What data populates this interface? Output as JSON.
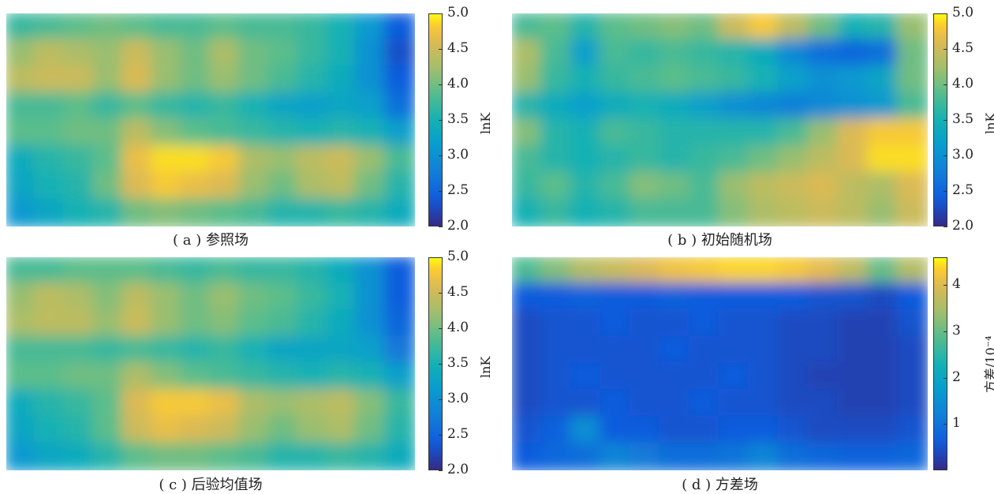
{
  "panels": [
    {
      "id": "a",
      "caption": "( a ) 参照场",
      "colorbar": {
        "ticks": [
          "5.0",
          "4.5",
          "4.0",
          "3.5",
          "3.0",
          "2.5",
          "2.0"
        ],
        "label": "lnK"
      }
    },
    {
      "id": "b",
      "caption": "( b ) 初始随机场",
      "colorbar": {
        "ticks": [
          "5.0",
          "4.5",
          "4.0",
          "3.5",
          "3.0",
          "2.5",
          "2.0"
        ],
        "label": "lnK"
      }
    },
    {
      "id": "c",
      "caption": "( c ) 后验均值场",
      "colorbar": {
        "ticks": [
          "5.0",
          "4.5",
          "4.0",
          "3.5",
          "3.0",
          "2.5",
          "2.0"
        ],
        "label": "lnK"
      }
    },
    {
      "id": "d",
      "caption": "( d ) 方差场",
      "colorbar": {
        "ticks": [
          "4",
          "3",
          "2",
          "1"
        ],
        "label": "方差/10⁻⁴"
      }
    }
  ],
  "chart_data": [
    {
      "type": "heatmap",
      "title": "( a ) 参照场",
      "colormap": "parula",
      "vmin": 2.0,
      "vmax": 5.0,
      "colorbar_label": "lnK",
      "rows": [
        [
          3.7,
          3.8,
          3.9,
          4.0,
          3.9,
          3.8,
          3.8,
          3.9,
          3.8,
          3.8,
          3.7,
          3.5,
          3.1,
          2.4
        ],
        [
          4.2,
          4.4,
          4.3,
          4.2,
          4.5,
          4.2,
          4.0,
          4.3,
          4.0,
          3.9,
          3.7,
          3.5,
          3.0,
          2.3
        ],
        [
          4.4,
          4.5,
          4.5,
          4.2,
          4.6,
          4.2,
          4.0,
          4.2,
          4.0,
          3.8,
          3.6,
          3.4,
          3.0,
          2.4
        ],
        [
          3.8,
          3.8,
          3.9,
          3.7,
          3.9,
          3.7,
          3.6,
          3.7,
          3.5,
          3.3,
          3.2,
          3.3,
          3.2,
          2.6
        ],
        [
          3.9,
          3.9,
          4.0,
          4.0,
          4.4,
          4.1,
          3.9,
          3.8,
          3.7,
          3.6,
          3.5,
          3.6,
          3.5,
          3.2
        ],
        [
          3.4,
          3.6,
          3.7,
          3.9,
          4.7,
          4.9,
          4.9,
          4.8,
          4.3,
          4.2,
          4.4,
          4.5,
          4.2,
          3.8
        ],
        [
          3.3,
          3.5,
          3.6,
          4.0,
          4.6,
          4.8,
          4.7,
          4.6,
          4.2,
          4.0,
          4.3,
          4.4,
          4.0,
          3.6
        ],
        [
          3.1,
          3.3,
          3.5,
          3.6,
          4.0,
          4.1,
          4.0,
          3.9,
          3.8,
          3.6,
          3.6,
          3.7,
          3.6,
          3.4
        ]
      ]
    },
    {
      "type": "heatmap",
      "title": "( b ) 初始随机场",
      "colormap": "parula",
      "vmin": 2.0,
      "vmax": 5.0,
      "colorbar_label": "lnK",
      "rows": [
        [
          3.8,
          3.9,
          3.6,
          3.9,
          4.0,
          4.1,
          4.0,
          4.5,
          4.8,
          4.4,
          4.0,
          3.5,
          3.6,
          4.2
        ],
        [
          4.3,
          3.8,
          3.2,
          3.8,
          3.7,
          3.8,
          3.7,
          3.6,
          3.4,
          2.9,
          2.6,
          2.5,
          2.6,
          4.0
        ],
        [
          4.2,
          3.7,
          3.5,
          3.7,
          3.8,
          3.9,
          3.8,
          3.7,
          3.5,
          3.2,
          3.0,
          3.1,
          3.3,
          4.0
        ],
        [
          3.6,
          3.4,
          3.2,
          3.4,
          3.5,
          3.4,
          3.2,
          3.0,
          2.9,
          2.8,
          2.9,
          3.0,
          3.1,
          3.8
        ],
        [
          4.1,
          3.6,
          3.5,
          3.8,
          3.7,
          3.6,
          3.6,
          3.6,
          3.6,
          3.8,
          4.2,
          4.6,
          4.8,
          4.8
        ],
        [
          3.8,
          3.6,
          3.5,
          3.6,
          3.7,
          3.6,
          3.7,
          3.8,
          4.0,
          4.2,
          4.4,
          4.6,
          4.9,
          4.9
        ],
        [
          3.7,
          3.9,
          3.6,
          3.8,
          4.1,
          4.0,
          3.8,
          4.2,
          4.4,
          4.5,
          4.6,
          4.4,
          4.3,
          4.6
        ],
        [
          3.5,
          3.7,
          3.5,
          3.6,
          3.8,
          3.8,
          3.8,
          4.1,
          4.3,
          4.4,
          4.5,
          4.4,
          4.2,
          4.5
        ]
      ]
    },
    {
      "type": "heatmap",
      "title": "( c ) 后验均值场",
      "colormap": "parula",
      "vmin": 2.0,
      "vmax": 5.0,
      "colorbar_label": "lnK",
      "rows": [
        [
          3.8,
          3.8,
          3.9,
          3.9,
          3.9,
          3.8,
          3.7,
          3.8,
          3.7,
          3.7,
          3.6,
          3.4,
          3.0,
          2.4
        ],
        [
          4.2,
          4.4,
          4.3,
          4.1,
          4.4,
          4.2,
          4.0,
          4.2,
          4.0,
          3.9,
          3.7,
          3.5,
          3.0,
          2.4
        ],
        [
          4.3,
          4.4,
          4.4,
          4.2,
          4.5,
          4.2,
          4.0,
          4.1,
          3.9,
          3.8,
          3.6,
          3.4,
          3.0,
          2.5
        ],
        [
          3.8,
          3.8,
          3.8,
          3.7,
          3.8,
          3.7,
          3.6,
          3.7,
          3.5,
          3.3,
          3.3,
          3.3,
          3.2,
          2.7
        ],
        [
          3.9,
          3.9,
          4.0,
          4.0,
          4.3,
          4.1,
          3.9,
          3.8,
          3.7,
          3.6,
          3.5,
          3.6,
          3.5,
          3.2
        ],
        [
          3.4,
          3.6,
          3.7,
          3.9,
          4.6,
          4.8,
          4.8,
          4.7,
          4.3,
          4.2,
          4.3,
          4.4,
          4.1,
          3.7
        ],
        [
          3.3,
          3.5,
          3.6,
          3.9,
          4.5,
          4.7,
          4.6,
          4.5,
          4.2,
          4.0,
          4.2,
          4.3,
          4.0,
          3.6
        ],
        [
          3.1,
          3.3,
          3.4,
          3.6,
          3.9,
          4.0,
          4.0,
          3.9,
          3.8,
          3.6,
          3.6,
          3.7,
          3.6,
          3.4
        ]
      ]
    },
    {
      "type": "heatmap",
      "title": "( d ) 方差场",
      "colormap": "parula",
      "vmin": 0.0,
      "vmax": 4.6,
      "colorbar_label": "方差/10⁻⁴",
      "rows": [
        [
          2.8,
          3.2,
          3.6,
          3.8,
          4.0,
          4.2,
          4.3,
          4.4,
          4.4,
          4.3,
          4.1,
          3.7,
          3.0,
          3.6
        ],
        [
          0.6,
          0.6,
          0.7,
          0.6,
          0.6,
          0.7,
          0.6,
          0.6,
          0.6,
          0.6,
          0.5,
          0.5,
          0.4,
          0.6
        ],
        [
          0.4,
          0.5,
          0.5,
          0.6,
          0.5,
          0.5,
          0.6,
          0.5,
          0.5,
          0.4,
          0.4,
          0.3,
          0.3,
          0.5
        ],
        [
          0.4,
          0.5,
          0.5,
          0.5,
          0.5,
          0.6,
          0.5,
          0.5,
          0.5,
          0.4,
          0.4,
          0.3,
          0.3,
          0.4
        ],
        [
          0.4,
          0.5,
          0.6,
          0.5,
          0.5,
          0.5,
          0.5,
          0.6,
          0.5,
          0.4,
          0.3,
          0.3,
          0.3,
          0.4
        ],
        [
          0.4,
          0.5,
          0.5,
          0.6,
          0.5,
          0.5,
          0.6,
          0.5,
          0.5,
          0.4,
          0.4,
          0.3,
          0.3,
          0.4
        ],
        [
          0.5,
          0.7,
          1.5,
          0.6,
          0.6,
          0.5,
          0.5,
          0.6,
          0.6,
          0.5,
          0.4,
          0.4,
          0.4,
          0.5
        ],
        [
          0.6,
          0.8,
          0.9,
          1.3,
          1.1,
          0.9,
          0.9,
          1.0,
          1.3,
          0.9,
          0.8,
          0.7,
          0.7,
          0.8
        ]
      ]
    }
  ]
}
